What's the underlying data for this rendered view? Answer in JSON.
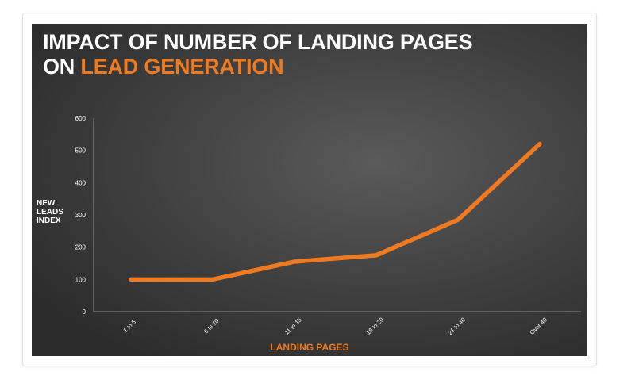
{
  "chart_data": {
    "type": "line",
    "title_line1": "IMPACT OF NUMBER OF LANDING PAGES",
    "title_line2_prefix": "ON ",
    "title_line2_accent": "LEAD GENERATION",
    "ylabel_lines": [
      "NEW",
      "LEADS",
      "INDEX"
    ],
    "xlabel": "LANDING PAGES",
    "categories": [
      "1 to 5",
      "6 to 10",
      "11 to 15",
      "16 to 20",
      "21 to 40",
      "Over 40"
    ],
    "series": [
      {
        "values": [
          100,
          100,
          155,
          175,
          285,
          520
        ]
      }
    ],
    "yticks": [
      0,
      100,
      200,
      300,
      400,
      500,
      600
    ],
    "ylim": [
      0,
      600
    ],
    "grid": false,
    "colors": {
      "line": "#f07a1f",
      "accent": "#f07a1f",
      "background": "#3d3d3d",
      "axis": "#8a8a8a",
      "text": "#ffffff"
    }
  }
}
